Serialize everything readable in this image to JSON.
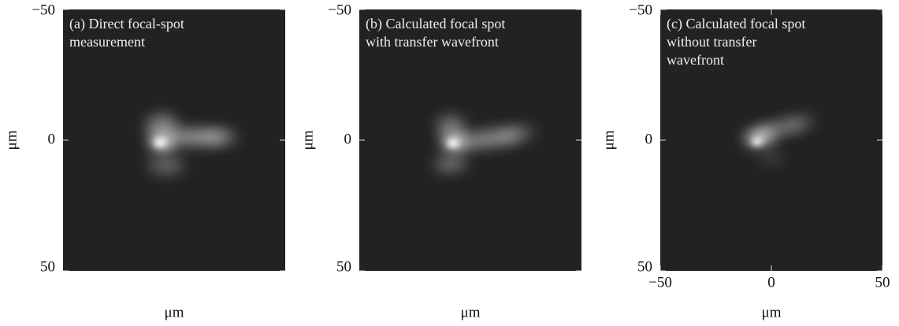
{
  "chart_data": [
    {
      "type": "image",
      "annotation": [
        "(a) Direct focal-spot",
        "measurement"
      ],
      "xlabel": "μm",
      "ylabel": "μm",
      "xlim": [
        -50,
        50
      ],
      "ylim": [
        -50,
        50
      ],
      "yticks": [
        {
          "value": -50,
          "label": "−50"
        },
        0,
        50
      ]
    },
    {
      "type": "image",
      "annotation": [
        "(b) Calculated focal spot",
        "with transfer wavefront"
      ],
      "xlabel": "μm",
      "ylabel": "μm",
      "xlim": [
        -50,
        50
      ],
      "ylim": [
        -50,
        50
      ],
      "yticks": [
        {
          "value": -50,
          "label": "−50"
        },
        0,
        50
      ]
    },
    {
      "type": "image",
      "annotation": [
        "(c) Calculated focal spot",
        "without transfer",
        "wavefront"
      ],
      "xlabel": "μm",
      "ylabel": "μm",
      "xlim": [
        -50,
        50
      ],
      "ylim": [
        -50,
        50
      ],
      "xticks": [
        {
          "value": -50,
          "label": "−50"
        },
        0,
        50
      ],
      "yticks": [
        {
          "value": -50,
          "label": "−50"
        },
        0,
        50
      ]
    }
  ]
}
